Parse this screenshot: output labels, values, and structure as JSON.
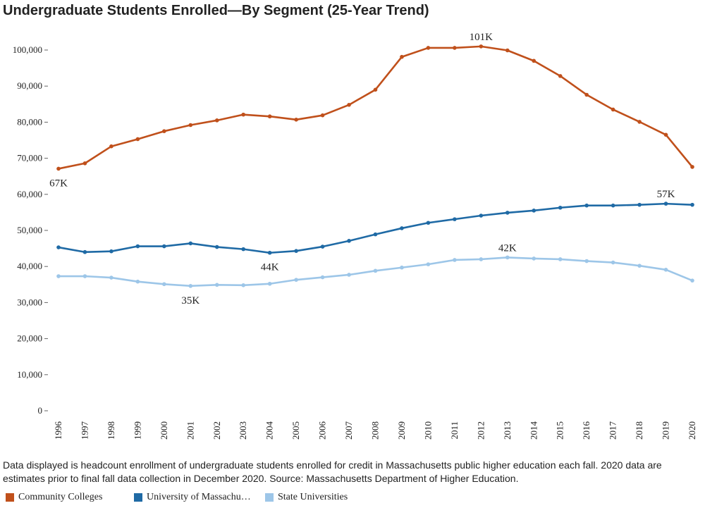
{
  "title": "Undergraduate Students Enrolled—By Segment (25-Year Trend)",
  "footnote": "Data displayed is headcount enrollment of undergraduate students enrolled for credit in Massachusetts public higher education each fall. 2020 data are estimates prior to final fall data collection in December 2020. Source: Massachusetts Department of Higher Education.",
  "legend": [
    {
      "label": "Community Colleges",
      "color": "#c0501b"
    },
    {
      "label": "University of Massachusetts",
      "color": "#1f6aa5"
    },
    {
      "label": "State Universities",
      "color": "#9dc6e8"
    }
  ],
  "chart_data": {
    "type": "line",
    "title": "Undergraduate Students Enrolled—By Segment (25-Year Trend)",
    "xlabel": "",
    "ylabel": "",
    "ylim": [
      0,
      100000
    ],
    "yticks": [
      0,
      10000,
      20000,
      30000,
      40000,
      50000,
      60000,
      70000,
      80000,
      90000,
      100000
    ],
    "ytick_labels": [
      "0",
      "10,000",
      "20,000",
      "30,000",
      "40,000",
      "50,000",
      "60,000",
      "70,000",
      "80,000",
      "90,000",
      "100,000"
    ],
    "x": [
      "1996",
      "1997",
      "1998",
      "1999",
      "2000",
      "2001",
      "2002",
      "2003",
      "2004",
      "2005",
      "2006",
      "2007",
      "2008",
      "2009",
      "2010",
      "2011",
      "2012",
      "2013",
      "2014",
      "2015",
      "2016",
      "2017",
      "2018",
      "2019",
      "2020"
    ],
    "series": [
      {
        "name": "Community Colleges",
        "color": "#c0501b",
        "values": [
          67100,
          68600,
          73300,
          75300,
          77500,
          79200,
          80500,
          82100,
          81600,
          80700,
          81900,
          84800,
          89000,
          98100,
          100600,
          100600,
          101000,
          99900,
          97000,
          92800,
          87600,
          83500,
          80100,
          76500,
          67600
        ]
      },
      {
        "name": "University of Massachusetts",
        "color": "#1f6aa5",
        "values": [
          45300,
          44000,
          44200,
          45600,
          45600,
          46400,
          45400,
          44800,
          43800,
          44300,
          45500,
          47100,
          48900,
          50600,
          52100,
          53100,
          54100,
          54900,
          55500,
          56300,
          56900,
          56900,
          57100,
          57400,
          57100
        ]
      },
      {
        "name": "State Universities",
        "color": "#9dc6e8",
        "values": [
          37300,
          37300,
          36900,
          35800,
          35100,
          34600,
          34900,
          34800,
          35200,
          36300,
          37000,
          37700,
          38800,
          39700,
          40600,
          41800,
          42000,
          42500,
          42200,
          42000,
          41500,
          41100,
          40200,
          39100,
          36100
        ]
      }
    ],
    "annotations": [
      {
        "text": "67K",
        "series": 0,
        "index": 0,
        "pos": "below"
      },
      {
        "text": "101K",
        "series": 0,
        "index": 16,
        "pos": "above"
      },
      {
        "text": "57K",
        "series": 1,
        "index": 23,
        "pos": "above"
      },
      {
        "text": "44K",
        "series": 1,
        "index": 8,
        "pos": "below"
      },
      {
        "text": "42K",
        "series": 2,
        "index": 17,
        "pos": "above"
      },
      {
        "text": "35K",
        "series": 2,
        "index": 5,
        "pos": "below"
      }
    ]
  }
}
